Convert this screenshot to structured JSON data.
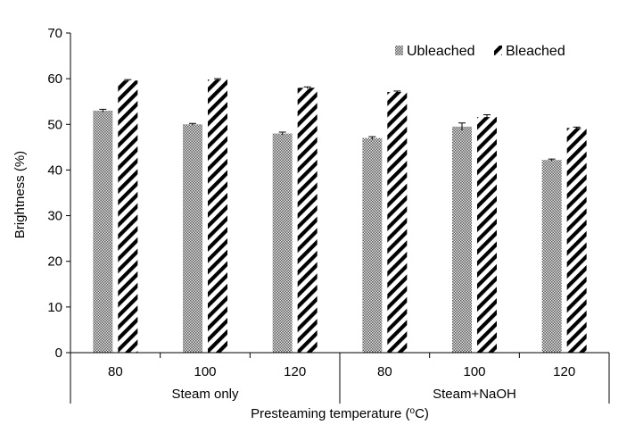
{
  "chart_data": {
    "type": "bar",
    "groups": [
      {
        "label": "Steam only",
        "categories": [
          "80",
          "100",
          "120"
        ]
      },
      {
        "label": "Steam+NaOH",
        "categories": [
          "80",
          "100",
          "120"
        ]
      }
    ],
    "categories": [
      "80",
      "100",
      "120",
      "80",
      "100",
      "120"
    ],
    "series": [
      {
        "name": "Ubleached",
        "values": [
          53,
          50,
          48,
          47,
          49.5,
          42.2
        ],
        "errors": [
          0.3,
          0.2,
          0.3,
          0.3,
          0.8,
          0.2
        ]
      },
      {
        "name": "Bleached",
        "values": [
          59.6,
          59.8,
          58,
          57.1,
          51.6,
          49.2
        ],
        "errors": [
          0.2,
          0.2,
          0.2,
          0.2,
          0.5,
          0.2
        ]
      }
    ],
    "xlabel": "Presteaming temperature (°C)",
    "xlabel_prefix": "Presteaming temperature (",
    "xlabel_sup": "o",
    "xlabel_suffix": "C)",
    "ylabel": "Brightness (%)",
    "ylim": [
      0,
      70
    ],
    "yticks": [
      "0",
      "10",
      "20",
      "30",
      "40",
      "50",
      "60",
      "70"
    ],
    "legend_position": "top-right",
    "grid": false,
    "title": ""
  }
}
